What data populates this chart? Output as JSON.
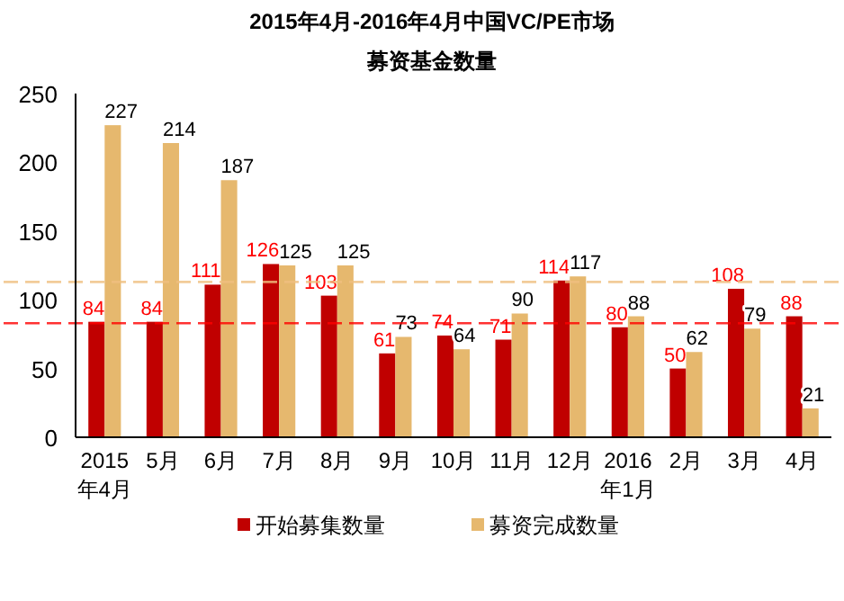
{
  "chart_data": {
    "type": "bar",
    "title": "2015年4月-2016年4月中国VC/PE市场",
    "subtitle": "募资基金数量",
    "categories": [
      "2015\n年4月",
      "5月",
      "6月",
      "7月",
      "8月",
      "9月",
      "10月",
      "11月",
      "12月",
      "2016\n年1月",
      "2月",
      "3月",
      "4月"
    ],
    "series": [
      {
        "name": "开始募集数量",
        "color": "#c00000",
        "values": [
          84,
          84,
          111,
          126,
          103,
          61,
          74,
          71,
          114,
          80,
          50,
          108,
          88
        ]
      },
      {
        "name": "募资完成数量",
        "color": "#e6b86e",
        "values": [
          227,
          214,
          187,
          125,
          125,
          73,
          64,
          90,
          117,
          88,
          62,
          79,
          21
        ]
      }
    ],
    "ylim": [
      0,
      250
    ],
    "yticks": [
      0,
      50,
      100,
      150,
      200,
      250
    ],
    "data_labels": true,
    "grid": false,
    "legend": "bottom",
    "ref_lines": [
      {
        "axis": "y",
        "value": 83,
        "color": "#ff0000",
        "line_style": "dashed"
      },
      {
        "axis": "y",
        "value": 113,
        "color": "#f0c080",
        "line_style": "dashed"
      }
    ]
  }
}
